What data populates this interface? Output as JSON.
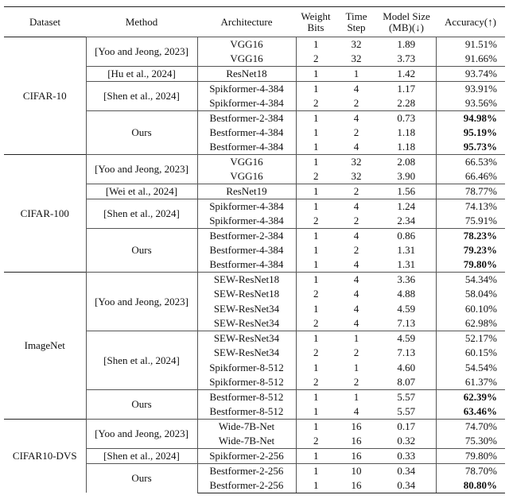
{
  "header": {
    "dataset": "Dataset",
    "method": "Method",
    "architecture": "Architecture",
    "bits": "Weight Bits",
    "time": "Time Step",
    "size": "Model Size (MB)(↓)",
    "accuracy": "Accuracy(↑)"
  },
  "groups": [
    {
      "dataset": "CIFAR-10",
      "methods": [
        {
          "method": "[Yoo and Jeong, 2023]",
          "rows": [
            {
              "arch": "VGG16",
              "bits": "1",
              "time": "32",
              "size": "1.89",
              "acc": "91.51%"
            },
            {
              "arch": "VGG16",
              "bits": "2",
              "time": "32",
              "size": "3.73",
              "acc": "91.66%"
            }
          ]
        },
        {
          "method": "[Hu et al., 2024]",
          "rows": [
            {
              "arch": "ResNet18",
              "bits": "1",
              "time": "1",
              "size": "1.42",
              "acc": "93.74%"
            }
          ]
        },
        {
          "method": "[Shen et al., 2024]",
          "rows": [
            {
              "arch": "Spikformer-4-384",
              "bits": "1",
              "time": "4",
              "size": "1.17",
              "acc": "93.91%"
            },
            {
              "arch": "Spikformer-4-384",
              "bits": "2",
              "time": "2",
              "size": "2.28",
              "acc": "93.56%"
            }
          ]
        },
        {
          "method": "Ours",
          "rows": [
            {
              "arch": "Bestformer-2-384",
              "bits": "1",
              "time": "4",
              "size": "0.73",
              "acc": "94.98%",
              "bold": true
            },
            {
              "arch": "Bestformer-4-384",
              "bits": "1",
              "time": "2",
              "size": "1.18",
              "acc": "95.19%",
              "bold": true
            },
            {
              "arch": "Bestformer-4-384",
              "bits": "1",
              "time": "4",
              "size": "1.18",
              "acc": "95.73%",
              "bold": true
            }
          ]
        }
      ]
    },
    {
      "dataset": "CIFAR-100",
      "methods": [
        {
          "method": "[Yoo and Jeong, 2023]",
          "rows": [
            {
              "arch": "VGG16",
              "bits": "1",
              "time": "32",
              "size": "2.08",
              "acc": "66.53%"
            },
            {
              "arch": "VGG16",
              "bits": "2",
              "time": "32",
              "size": "3.90",
              "acc": "66.46%"
            }
          ]
        },
        {
          "method": "[Wei et al., 2024]",
          "rows": [
            {
              "arch": "ResNet19",
              "bits": "1",
              "time": "2",
              "size": "1.56",
              "acc": "78.77%"
            }
          ]
        },
        {
          "method": "[Shen et al., 2024]",
          "rows": [
            {
              "arch": "Spikformer-4-384",
              "bits": "1",
              "time": "4",
              "size": "1.24",
              "acc": "74.13%"
            },
            {
              "arch": "Spikformer-4-384",
              "bits": "2",
              "time": "2",
              "size": "2.34",
              "acc": "75.91%"
            }
          ]
        },
        {
          "method": "Ours",
          "rows": [
            {
              "arch": "Bestformer-2-384",
              "bits": "1",
              "time": "4",
              "size": "0.86",
              "acc": "78.23%",
              "bold": true
            },
            {
              "arch": "Bestformer-4-384",
              "bits": "1",
              "time": "2",
              "size": "1.31",
              "acc": "79.23%",
              "bold": true
            },
            {
              "arch": "Bestformer-4-384",
              "bits": "1",
              "time": "4",
              "size": "1.31",
              "acc": "79.80%",
              "bold": true
            }
          ]
        }
      ]
    },
    {
      "dataset": "ImageNet",
      "methods": [
        {
          "method": "[Yoo and Jeong, 2023]",
          "rows": [
            {
              "arch": "SEW-ResNet18",
              "bits": "1",
              "time": "4",
              "size": "3.36",
              "acc": "54.34%"
            },
            {
              "arch": "SEW-ResNet18",
              "bits": "2",
              "time": "4",
              "size": "4.88",
              "acc": "58.04%"
            },
            {
              "arch": "SEW-ResNet34",
              "bits": "1",
              "time": "4",
              "size": "4.59",
              "acc": "60.10%"
            },
            {
              "arch": "SEW-ResNet34",
              "bits": "2",
              "time": "4",
              "size": "7.13",
              "acc": "62.98%"
            }
          ]
        },
        {
          "method": "[Shen et al., 2024]",
          "rows": [
            {
              "arch": "SEW-ResNet34",
              "bits": "1",
              "time": "1",
              "size": "4.59",
              "acc": "52.17%"
            },
            {
              "arch": "SEW-ResNet34",
              "bits": "2",
              "time": "2",
              "size": "7.13",
              "acc": "60.15%"
            },
            {
              "arch": "Spikformer-8-512",
              "bits": "1",
              "time": "1",
              "size": "4.60",
              "acc": "54.54%"
            },
            {
              "arch": "Spikformer-8-512",
              "bits": "2",
              "time": "2",
              "size": "8.07",
              "acc": "61.37%"
            }
          ]
        },
        {
          "method": "Ours",
          "rows": [
            {
              "arch": "Bestformer-8-512",
              "bits": "1",
              "time": "1",
              "size": "5.57",
              "acc": "62.39%",
              "bold": true
            },
            {
              "arch": "Bestformer-8-512",
              "bits": "1",
              "time": "4",
              "size": "5.57",
              "acc": "63.46%",
              "bold": true
            }
          ]
        }
      ]
    },
    {
      "dataset": "CIFAR10-DVS",
      "methods": [
        {
          "method": "[Yoo and Jeong, 2023]",
          "rows": [
            {
              "arch": "Wide-7B-Net",
              "bits": "1",
              "time": "16",
              "size": "0.17",
              "acc": "74.70%"
            },
            {
              "arch": "Wide-7B-Net",
              "bits": "2",
              "time": "16",
              "size": "0.32",
              "acc": "75.30%"
            }
          ]
        },
        {
          "method": "[Shen et al., 2024]",
          "rows": [
            {
              "arch": "Spikformer-2-256",
              "bits": "1",
              "time": "16",
              "size": "0.33",
              "acc": "79.80%"
            }
          ]
        },
        {
          "method": "Ours",
          "rows": [
            {
              "arch": "Bestformer-2-256",
              "bits": "1",
              "time": "10",
              "size": "0.34",
              "acc": "78.70%"
            },
            {
              "arch": "Bestformer-2-256",
              "bits": "1",
              "time": "16",
              "size": "0.34",
              "acc": "80.80%",
              "bold": true
            }
          ]
        }
      ]
    }
  ]
}
